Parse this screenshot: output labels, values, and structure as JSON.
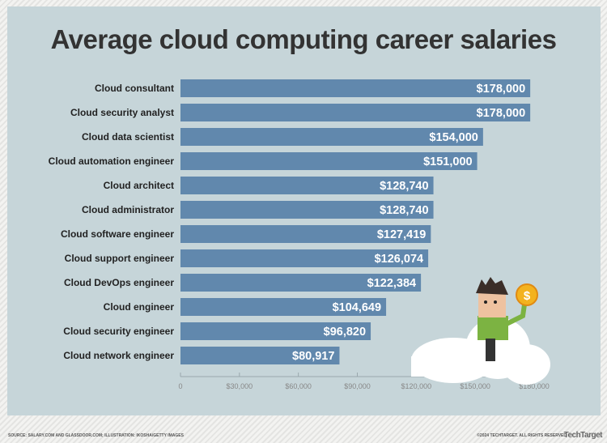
{
  "chart_data": {
    "type": "bar",
    "orientation": "horizontal",
    "title": "Average cloud computing career salaries",
    "categories": [
      "Cloud consultant",
      "Cloud security analyst",
      "Cloud data scientist",
      "Cloud automation engineer",
      "Cloud architect",
      "Cloud administrator",
      "Cloud software engineer",
      "Cloud support engineer",
      "Cloud DevOps engineer",
      "Cloud engineer",
      "Cloud security engineer",
      "Cloud network engineer"
    ],
    "values": [
      178000,
      178000,
      154000,
      151000,
      128740,
      128740,
      127419,
      126074,
      122384,
      104649,
      96820,
      80917
    ],
    "data_labels": [
      "$178,000",
      "$178,000",
      "$154,000",
      "$151,000",
      "$128,740",
      "$128,740",
      "$127,419",
      "$126,074",
      "$122,384",
      "$104,649",
      "$96,820",
      "$80,917"
    ],
    "xlim": [
      0,
      180000
    ],
    "x_ticks": [
      "0",
      "$30,000",
      "$60,000",
      "$90,000",
      "$120,000",
      "$150,000",
      "$180,000"
    ],
    "bar_color": "#6188ad",
    "background": "#c6d5d9",
    "grid": false
  },
  "footer": {
    "source": "SOURCE: SALARY.COM AND GLASSDOOR.COM; ILLUSTRATION: IKOSHA/GETTY IMAGES",
    "copyright": "©2024 TECHTARGET. ALL RIGHTS RESERVED",
    "logo": "TechTarget"
  }
}
